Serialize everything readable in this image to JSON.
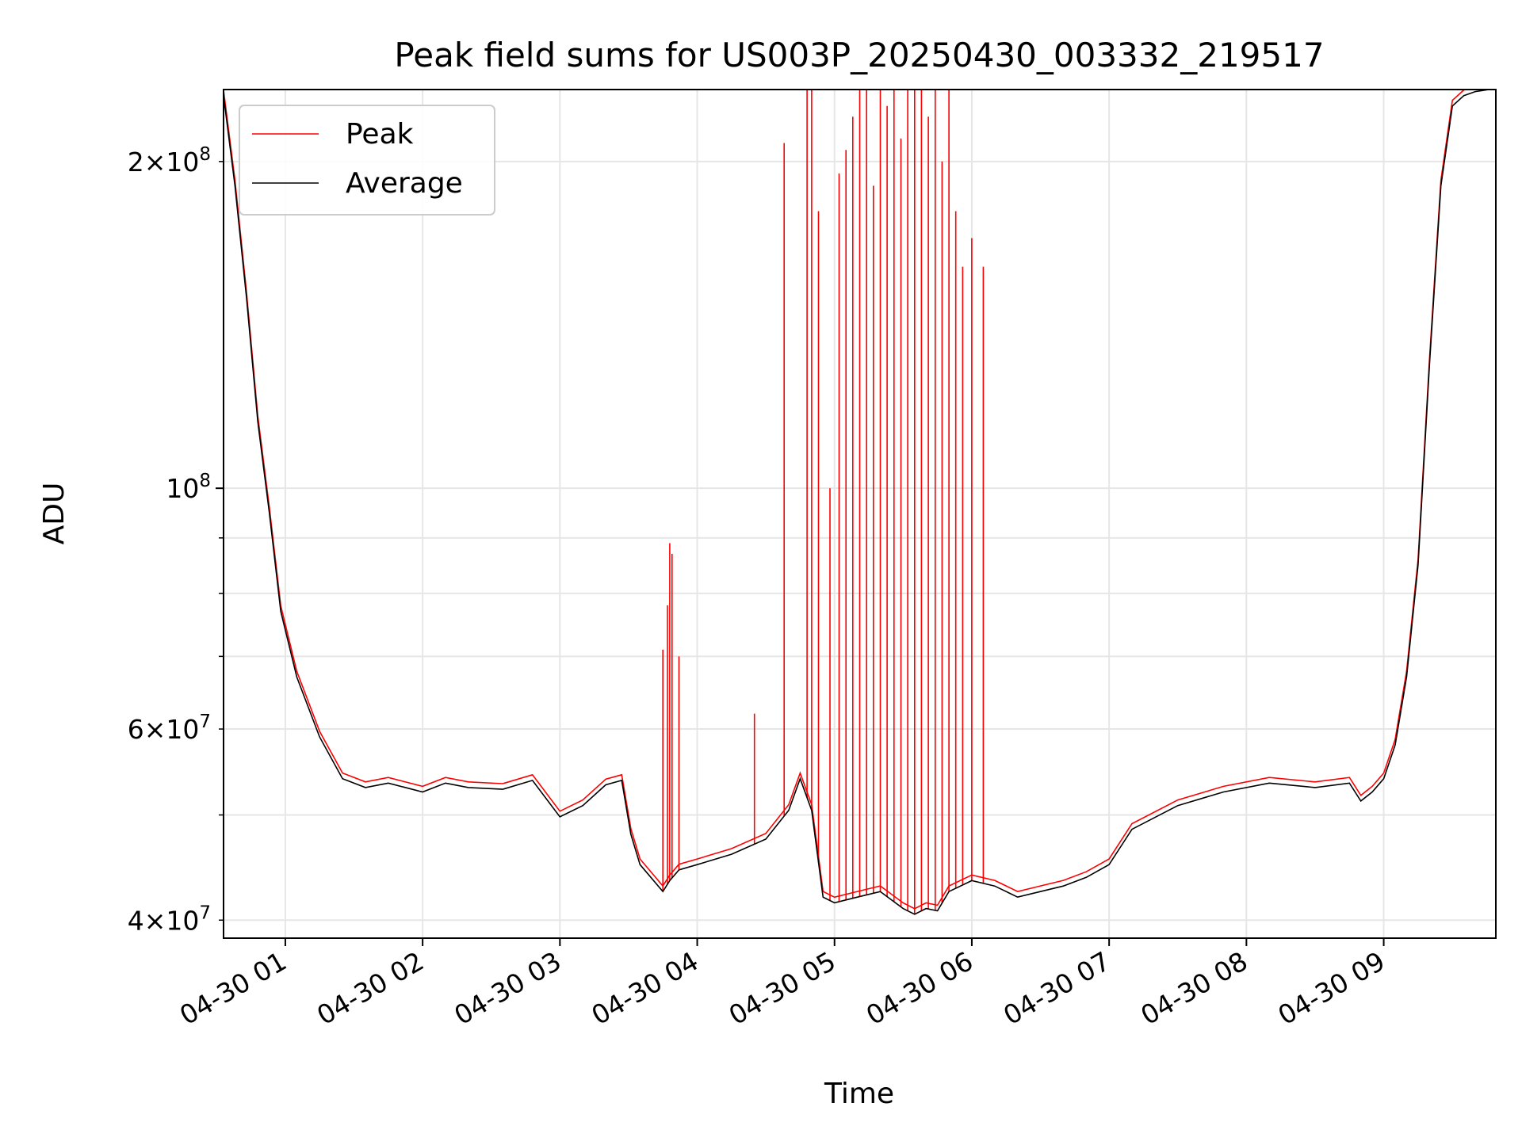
{
  "chart_data": {
    "type": "line",
    "title": "Peak field sums for US003P_20250430_003332_219517",
    "xlabel": "Time",
    "ylabel": "ADU",
    "x_scale": "time",
    "y_scale": "log",
    "xlim": [
      "2025-04-30 00:33",
      "2025-04-30 09:49"
    ],
    "ylim": [
      38500000,
      233000000
    ],
    "x_ticks": [
      {
        "value": "2025-04-30 01:00",
        "label": "04-30 01"
      },
      {
        "value": "2025-04-30 02:00",
        "label": "04-30 02"
      },
      {
        "value": "2025-04-30 03:00",
        "label": "04-30 03"
      },
      {
        "value": "2025-04-30 04:00",
        "label": "04-30 04"
      },
      {
        "value": "2025-04-30 05:00",
        "label": "04-30 05"
      },
      {
        "value": "2025-04-30 06:00",
        "label": "04-30 06"
      },
      {
        "value": "2025-04-30 07:00",
        "label": "04-30 07"
      },
      {
        "value": "2025-04-30 08:00",
        "label": "04-30 08"
      },
      {
        "value": "2025-04-30 09:00",
        "label": "04-30 09"
      }
    ],
    "y_ticks_major": [
      {
        "value": 100000000,
        "base": "10",
        "exp": "8"
      }
    ],
    "y_ticks_minor": [
      {
        "value": 40000000,
        "mant": "4",
        "base": "10",
        "exp": "7"
      },
      {
        "value": 60000000,
        "mant": "6",
        "base": "10",
        "exp": "7"
      },
      {
        "value": 200000000,
        "mant": "2",
        "base": "10",
        "exp": "8"
      }
    ],
    "y_grid_unlabeled": [
      50000000,
      70000000,
      80000000,
      90000000
    ],
    "grid": true,
    "legend": {
      "position": "top-left",
      "entries": [
        {
          "label": "Peak",
          "color": "#ff0000"
        },
        {
          "label": "Average",
          "color": "#000000"
        }
      ]
    },
    "series": [
      {
        "name": "Average",
        "color": "#000000",
        "x": [
          "2025-04-30 00:33",
          "2025-04-30 00:38",
          "2025-04-30 00:43",
          "2025-04-30 00:48",
          "2025-04-30 00:53",
          "2025-04-30 00:58",
          "2025-04-30 01:05",
          "2025-04-30 01:15",
          "2025-04-30 01:25",
          "2025-04-30 01:35",
          "2025-04-30 01:45",
          "2025-04-30 02:00",
          "2025-04-30 02:10",
          "2025-04-30 02:20",
          "2025-04-30 02:35",
          "2025-04-30 02:48",
          "2025-04-30 03:00",
          "2025-04-30 03:10",
          "2025-04-30 03:20",
          "2025-04-30 03:27",
          "2025-04-30 03:31",
          "2025-04-30 03:35",
          "2025-04-30 03:45",
          "2025-04-30 03:48",
          "2025-04-30 03:52",
          "2025-04-30 04:00",
          "2025-04-30 04:15",
          "2025-04-30 04:30",
          "2025-04-30 04:40",
          "2025-04-30 04:45",
          "2025-04-30 04:50",
          "2025-04-30 04:55",
          "2025-04-30 05:00",
          "2025-04-30 05:10",
          "2025-04-30 05:20",
          "2025-04-30 05:30",
          "2025-04-30 05:35",
          "2025-04-30 05:40",
          "2025-04-30 05:45",
          "2025-04-30 05:50",
          "2025-04-30 06:00",
          "2025-04-30 06:10",
          "2025-04-30 06:20",
          "2025-04-30 06:30",
          "2025-04-30 06:40",
          "2025-04-30 06:50",
          "2025-04-30 07:00",
          "2025-04-30 07:10",
          "2025-04-30 07:30",
          "2025-04-30 07:50",
          "2025-04-30 08:10",
          "2025-04-30 08:30",
          "2025-04-30 08:45",
          "2025-04-30 08:50",
          "2025-04-30 08:55",
          "2025-04-30 09:00",
          "2025-04-30 09:05",
          "2025-04-30 09:10",
          "2025-04-30 09:15",
          "2025-04-30 09:20",
          "2025-04-30 09:25",
          "2025-04-30 09:30",
          "2025-04-30 09:35",
          "2025-04-30 09:40",
          "2025-04-30 09:43",
          "2025-04-30 09:46",
          "2025-04-30 09:49"
        ],
        "values": [
          230000000,
          190000000,
          150000000,
          115000000,
          95000000,
          77000000,
          67000000,
          59000000,
          54000000,
          53000000,
          53500000,
          52500000,
          53500000,
          53000000,
          52800000,
          53800000,
          49800000,
          51000000,
          53300000,
          53800000,
          48000000,
          45000000,
          42500000,
          43500000,
          44500000,
          45000000,
          46000000,
          47500000,
          50500000,
          54000000,
          50500000,
          42000000,
          41500000,
          42000000,
          42500000,
          41000000,
          40500000,
          41000000,
          40800000,
          42500000,
          43500000,
          43000000,
          42000000,
          42500000,
          43000000,
          43800000,
          45000000,
          48500000,
          51000000,
          52500000,
          53500000,
          53000000,
          53500000,
          51500000,
          52500000,
          54000000,
          58000000,
          67000000,
          85000000,
          130000000,
          190000000,
          225000000,
          230000000,
          232000000,
          232500000,
          233000000,
          233000000
        ]
      },
      {
        "name": "Peak",
        "color": "#ff0000",
        "x": [
          "2025-04-30 03:45",
          "2025-04-30 03:47",
          "2025-04-30 03:48",
          "2025-04-30 03:49",
          "2025-04-30 03:52",
          "2025-04-30 04:25",
          "2025-04-30 04:38",
          "2025-04-30 04:48",
          "2025-04-30 04:50",
          "2025-04-30 04:53",
          "2025-04-30 04:58",
          "2025-04-30 05:02",
          "2025-04-30 05:05",
          "2025-04-30 05:08",
          "2025-04-30 05:11",
          "2025-04-30 05:14",
          "2025-04-30 05:17",
          "2025-04-30 05:20",
          "2025-04-30 05:23",
          "2025-04-30 05:26",
          "2025-04-30 05:29",
          "2025-04-30 05:32",
          "2025-04-30 05:35",
          "2025-04-30 05:38",
          "2025-04-30 05:41",
          "2025-04-30 05:44",
          "2025-04-30 05:47",
          "2025-04-30 05:50",
          "2025-04-30 05:53",
          "2025-04-30 05:56",
          "2025-04-30 06:00",
          "2025-04-30 06:05"
        ],
        "values": [
          71000000,
          78000000,
          89000000,
          87000000,
          70000000,
          62000000,
          208000000,
          233000000,
          233000000,
          180000000,
          100000000,
          195000000,
          205000000,
          220000000,
          233000000,
          233000000,
          190000000,
          233000000,
          225000000,
          233000000,
          210000000,
          233000000,
          233000000,
          233000000,
          220000000,
          233000000,
          200000000,
          233000000,
          180000000,
          160000000,
          170000000,
          160000000
        ]
      }
    ]
  }
}
